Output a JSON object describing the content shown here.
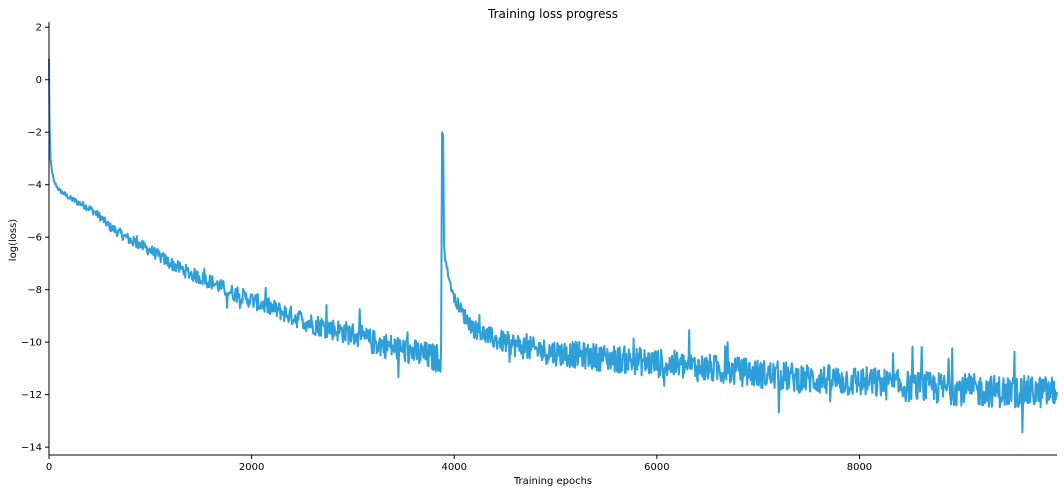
{
  "chart_data": {
    "type": "line",
    "title": "Training loss progress",
    "xlabel": "Training epochs",
    "ylabel": "log(loss)",
    "xlim": [
      0,
      9950
    ],
    "ylim": [
      -14.3,
      2.2
    ],
    "xticks": [
      0,
      2000,
      4000,
      6000,
      8000
    ],
    "xtick_labels": [
      "0",
      "2000",
      "4000",
      "6000",
      "8000"
    ],
    "yticks": [
      2,
      0,
      -2,
      -4,
      -6,
      -8,
      -10,
      -12,
      -14
    ],
    "ytick_labels": [
      "2",
      "0",
      "−2",
      "−4",
      "−6",
      "−8",
      "−10",
      "−12",
      "−14"
    ],
    "grid": false,
    "series": [
      {
        "name": "log(loss)",
        "color": "#2e9fd9",
        "x": [
          0,
          5,
          15,
          30,
          50,
          100,
          200,
          300,
          400,
          500,
          600,
          800,
          1000,
          1200,
          1400,
          1600,
          1800,
          2000,
          2200,
          2400,
          2600,
          2800,
          3000,
          3200,
          3400,
          3600,
          3800,
          3870,
          3880,
          3890,
          3900,
          3910,
          3950,
          4000,
          4100,
          4200,
          4400,
          4600,
          4800,
          5000,
          5500,
          6000,
          6500,
          7000,
          7500,
          8000,
          8500,
          9000,
          9500,
          9950
        ],
        "values": [
          0.8,
          -1.5,
          -3.0,
          -3.5,
          -3.9,
          -4.2,
          -4.5,
          -4.7,
          -4.9,
          -5.2,
          -5.6,
          -6.1,
          -6.5,
          -7.0,
          -7.4,
          -7.7,
          -8.1,
          -8.4,
          -8.7,
          -9.0,
          -9.3,
          -9.5,
          -9.7,
          -10.0,
          -10.2,
          -10.4,
          -10.6,
          -10.6,
          -2.0,
          -2.1,
          -6.3,
          -6.8,
          -7.6,
          -8.3,
          -9.0,
          -9.5,
          -9.9,
          -10.1,
          -10.3,
          -10.4,
          -10.6,
          -10.8,
          -11.0,
          -11.2,
          -11.4,
          -11.5,
          -11.7,
          -11.8,
          -11.9,
          -11.9
        ],
        "noise": [
          0,
          0,
          0,
          0.05,
          0.05,
          0.08,
          0.1,
          0.12,
          0.14,
          0.15,
          0.17,
          0.2,
          0.22,
          0.24,
          0.26,
          0.28,
          0.3,
          0.32,
          0.34,
          0.37,
          0.4,
          0.42,
          0.45,
          0.48,
          0.5,
          0.52,
          0.55,
          0.55,
          0,
          0,
          0.05,
          0.1,
          0.15,
          0.2,
          0.3,
          0.35,
          0.4,
          0.45,
          0.48,
          0.5,
          0.52,
          0.55,
          0.55,
          0.55,
          0.58,
          0.6,
          0.6,
          0.62,
          0.62,
          0.62
        ]
      }
    ]
  }
}
